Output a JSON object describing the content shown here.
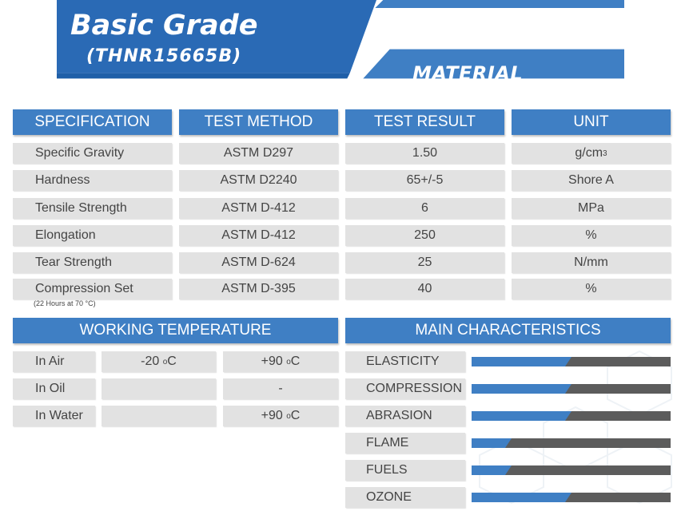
{
  "header": {
    "title": "Basic Grade",
    "subtitle": "(THNR15665B)",
    "section": "MATERIAL SPECIFICATION"
  },
  "spec_table": {
    "headers": [
      "SPECIFICATION",
      "TEST METHOD",
      "TEST RESULT",
      "UNIT"
    ],
    "rows": [
      {
        "spec": "Specific Gravity",
        "method": "ASTM D297",
        "result": "1.50",
        "unit": "g/cm",
        "unit_sup": "3"
      },
      {
        "spec": "Hardness",
        "method": "ASTM D2240",
        "result": "65+/-5",
        "unit": "Shore A"
      },
      {
        "spec": "Tensile Strength",
        "method": "ASTM D-412",
        "result": "6",
        "unit": "MPa"
      },
      {
        "spec": "Elongation",
        "method": "ASTM D-412",
        "result": "250",
        "unit": "%"
      },
      {
        "spec": "Tear Strength",
        "method": "ASTM D-624",
        "result": "25",
        "unit": "N/mm"
      },
      {
        "spec": "Compression Set",
        "method": "ASTM D-395",
        "result": "40",
        "unit": "%"
      }
    ],
    "note": "(22 Hours at 70 °C)"
  },
  "working_temperature": {
    "header": "WORKING TEMPERATURE",
    "rows": [
      {
        "label": "In Air",
        "min": "-20",
        "min_unit": "C",
        "max": "+90",
        "max_unit": "C"
      },
      {
        "label": "In Oil",
        "min": "",
        "min_unit": "",
        "max": "-",
        "max_unit": ""
      },
      {
        "label": "In Water",
        "min": "",
        "min_unit": "",
        "max": "+90",
        "max_unit": "C"
      }
    ],
    "degree_symbol": "o"
  },
  "main_characteristics": {
    "header": "MAIN CHARACTERISTICS",
    "items": [
      {
        "label": "ELASTICITY",
        "level": 0.47
      },
      {
        "label": "COMPRESSION",
        "level": 0.47
      },
      {
        "label": "ABRASION",
        "level": 0.47
      },
      {
        "label": "FLAME",
        "level": 0.17
      },
      {
        "label": "FUELS",
        "level": 0.17
      },
      {
        "label": "OZONE",
        "level": 0.47
      }
    ]
  },
  "colors": {
    "accent": "#3f7fc4",
    "header_dark": "#1f5fa8",
    "cell_bg": "#e2e2e2",
    "bar_bg": "#5c5c5c"
  }
}
